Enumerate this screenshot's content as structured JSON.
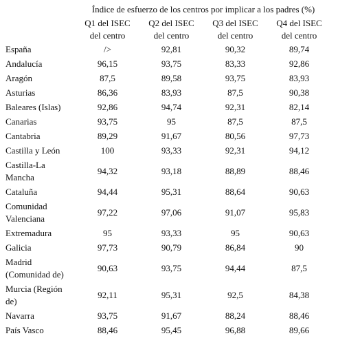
{
  "table": {
    "title": "Índice de esfuerzo de los centros por implicar a los padres (%)",
    "columns": [
      "Q1 del ISEC del centro",
      "Q2 del ISEC del centro",
      "Q3 del ISEC del centro",
      "Q4 del ISEC del centro"
    ],
    "rows": [
      [
        "España",
        "/>",
        "92,81",
        "90,32",
        "89,74"
      ],
      [
        "Andalucía",
        "96,15",
        "93,75",
        "83,33",
        "92,86"
      ],
      [
        "Aragón",
        "87,5",
        "89,58",
        "93,75",
        "83,93"
      ],
      [
        "Asturias",
        "86,36",
        "83,93",
        "87,5",
        "90,38"
      ],
      [
        "Baleares (Islas)",
        "92,86",
        "94,74",
        "92,31",
        "82,14"
      ],
      [
        "Canarias",
        "93,75",
        "95",
        "87,5",
        "87,5"
      ],
      [
        "Cantabria",
        "89,29",
        "91,67",
        "80,56",
        "97,73"
      ],
      [
        "Castilla y León",
        "100",
        "93,33",
        "92,31",
        "94,12"
      ],
      [
        "Castilla-La Mancha",
        "94,32",
        "93,18",
        "88,89",
        "88,46"
      ],
      [
        "Cataluña",
        "94,44",
        "95,31",
        "88,64",
        "90,63"
      ],
      [
        "Comunidad Valenciana",
        "97,22",
        "97,06",
        "91,07",
        "95,83"
      ],
      [
        "Extremadura",
        "95",
        "93,33",
        "95",
        "90,63"
      ],
      [
        "Galicia",
        "97,73",
        "90,79",
        "86,84",
        "90"
      ],
      [
        "Madrid (Comunidad de)",
        "90,63",
        "93,75",
        "94,44",
        "87,5"
      ],
      [
        "Murcia (Región de)",
        "92,11",
        "95,31",
        "92,5",
        "84,38"
      ],
      [
        "Navarra",
        "93,75",
        "91,67",
        "88,24",
        "88,46"
      ],
      [
        "País Vasco",
        "88,46",
        "95,45",
        "96,88",
        "89,66"
      ]
    ]
  }
}
